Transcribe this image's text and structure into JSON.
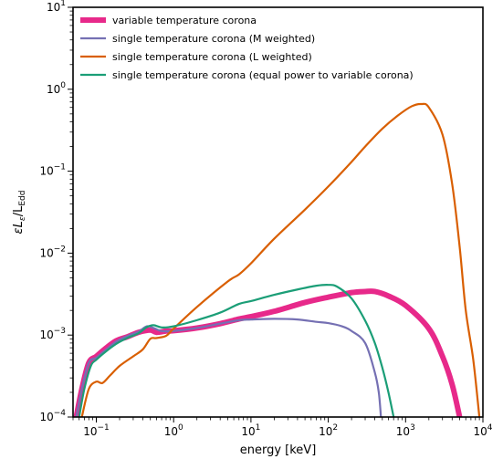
{
  "chart_data": {
    "type": "line",
    "xlabel": "energy [keV]",
    "ylabel_main": "εL",
    "ylabel_main_sub": "ε",
    "ylabel_denom": "/L",
    "ylabel_denom_sub": "Edd",
    "x_scale": "log",
    "y_scale": "log",
    "xlim": [
      0.05,
      10000
    ],
    "ylim": [
      0.0001,
      10
    ],
    "x_ticks": [
      {
        "value": 0.1,
        "base": "10",
        "exp": "−1"
      },
      {
        "value": 1,
        "base": "10",
        "exp": "0"
      },
      {
        "value": 10,
        "base": "10",
        "exp": "1"
      },
      {
        "value": 100,
        "base": "10",
        "exp": "2"
      },
      {
        "value": 1000,
        "base": "10",
        "exp": "3"
      },
      {
        "value": 10000,
        "base": "10",
        "exp": "4"
      }
    ],
    "y_ticks": [
      {
        "value": 0.0001,
        "base": "10",
        "exp": "−4"
      },
      {
        "value": 0.001,
        "base": "10",
        "exp": "−3"
      },
      {
        "value": 0.01,
        "base": "10",
        "exp": "−2"
      },
      {
        "value": 0.1,
        "base": "10",
        "exp": "−1"
      },
      {
        "value": 1,
        "base": "10",
        "exp": "0"
      },
      {
        "value": 10,
        "base": "10",
        "exp": "1"
      }
    ],
    "grid": false,
    "legend_position": "top-left",
    "series": [
      {
        "name": "variable temperature corona",
        "color": "#e7298a",
        "thick": true,
        "points": [
          [
            0.055,
            0.0001
          ],
          [
            0.065,
            0.00022
          ],
          [
            0.08,
            0.00046
          ],
          [
            0.1,
            0.00055
          ],
          [
            0.13,
            0.00068
          ],
          [
            0.18,
            0.00085
          ],
          [
            0.25,
            0.00095
          ],
          [
            0.35,
            0.00108
          ],
          [
            0.5,
            0.00115
          ],
          [
            0.6,
            0.00108
          ],
          [
            0.8,
            0.00112
          ],
          [
            1,
            0.00113
          ],
          [
            2,
            0.00122
          ],
          [
            4,
            0.00138
          ],
          [
            7,
            0.00157
          ],
          [
            10,
            0.00168
          ],
          [
            20,
            0.00195
          ],
          [
            50,
            0.0025
          ],
          [
            100,
            0.0029
          ],
          [
            200,
            0.0033
          ],
          [
            300,
            0.0034
          ],
          [
            400,
            0.0034
          ],
          [
            600,
            0.003
          ],
          [
            1000,
            0.0023
          ],
          [
            2000,
            0.0012
          ],
          [
            3000,
            0.00055
          ],
          [
            4000,
            0.00025
          ],
          [
            5000,
            0.0001
          ]
        ]
      },
      {
        "name": "single temperature corona (M weighted)",
        "color": "#7570b3",
        "thick": false,
        "points": [
          [
            0.055,
            0.0001
          ],
          [
            0.065,
            0.00022
          ],
          [
            0.08,
            0.00046
          ],
          [
            0.1,
            0.00053
          ],
          [
            0.13,
            0.00065
          ],
          [
            0.18,
            0.00083
          ],
          [
            0.25,
            0.00097
          ],
          [
            0.35,
            0.0011
          ],
          [
            0.45,
            0.00128
          ],
          [
            0.55,
            0.00122
          ],
          [
            0.7,
            0.00112
          ],
          [
            1,
            0.00112
          ],
          [
            2,
            0.00122
          ],
          [
            4,
            0.00138
          ],
          [
            7,
            0.00152
          ],
          [
            10,
            0.00155
          ],
          [
            20,
            0.00158
          ],
          [
            40,
            0.00155
          ],
          [
            70,
            0.00145
          ],
          [
            100,
            0.0014
          ],
          [
            150,
            0.00128
          ],
          [
            200,
            0.00112
          ],
          [
            300,
            0.0008
          ],
          [
            400,
            0.00035
          ],
          [
            450,
            0.0002
          ],
          [
            480,
            0.0001
          ]
        ]
      },
      {
        "name": "single temperature corona (L weighted)",
        "color": "#d95f02",
        "thick": false,
        "points": [
          [
            0.065,
            0.0001
          ],
          [
            0.08,
            0.00022
          ],
          [
            0.1,
            0.00027
          ],
          [
            0.12,
            0.00026
          ],
          [
            0.15,
            0.00032
          ],
          [
            0.2,
            0.00042
          ],
          [
            0.3,
            0.00055
          ],
          [
            0.4,
            0.00067
          ],
          [
            0.5,
            0.0009
          ],
          [
            0.6,
            0.00092
          ],
          [
            0.8,
            0.00098
          ],
          [
            1,
            0.0012
          ],
          [
            2,
            0.0022
          ],
          [
            5,
            0.0045
          ],
          [
            7,
            0.0055
          ],
          [
            10,
            0.0075
          ],
          [
            20,
            0.015
          ],
          [
            50,
            0.034
          ],
          [
            100,
            0.065
          ],
          [
            200,
            0.13
          ],
          [
            300,
            0.2
          ],
          [
            500,
            0.33
          ],
          [
            800,
            0.48
          ],
          [
            1200,
            0.62
          ],
          [
            1600,
            0.66
          ],
          [
            2000,
            0.6
          ],
          [
            3000,
            0.28
          ],
          [
            4000,
            0.07
          ],
          [
            5000,
            0.012
          ],
          [
            6000,
            0.002
          ],
          [
            7500,
            0.0005
          ],
          [
            9000,
            0.0001
          ]
        ]
      },
      {
        "name": "single temperature corona (equal power to variable corona)",
        "color": "#1b9e77",
        "thick": false,
        "points": [
          [
            0.06,
            0.0001
          ],
          [
            0.07,
            0.00022
          ],
          [
            0.085,
            0.00042
          ],
          [
            0.1,
            0.0005
          ],
          [
            0.13,
            0.00062
          ],
          [
            0.18,
            0.00078
          ],
          [
            0.25,
            0.00092
          ],
          [
            0.35,
            0.00105
          ],
          [
            0.45,
            0.00125
          ],
          [
            0.55,
            0.00132
          ],
          [
            0.7,
            0.00124
          ],
          [
            1,
            0.00128
          ],
          [
            2,
            0.00152
          ],
          [
            4,
            0.00188
          ],
          [
            7,
            0.0024
          ],
          [
            10,
            0.0026
          ],
          [
            20,
            0.0031
          ],
          [
            40,
            0.0036
          ],
          [
            70,
            0.004
          ],
          [
            100,
            0.0041
          ],
          [
            130,
            0.0039
          ],
          [
            200,
            0.0028
          ],
          [
            300,
            0.0015
          ],
          [
            400,
            0.0008
          ],
          [
            500,
            0.0004
          ],
          [
            600,
            0.0002
          ],
          [
            700,
            0.0001
          ]
        ]
      }
    ]
  }
}
